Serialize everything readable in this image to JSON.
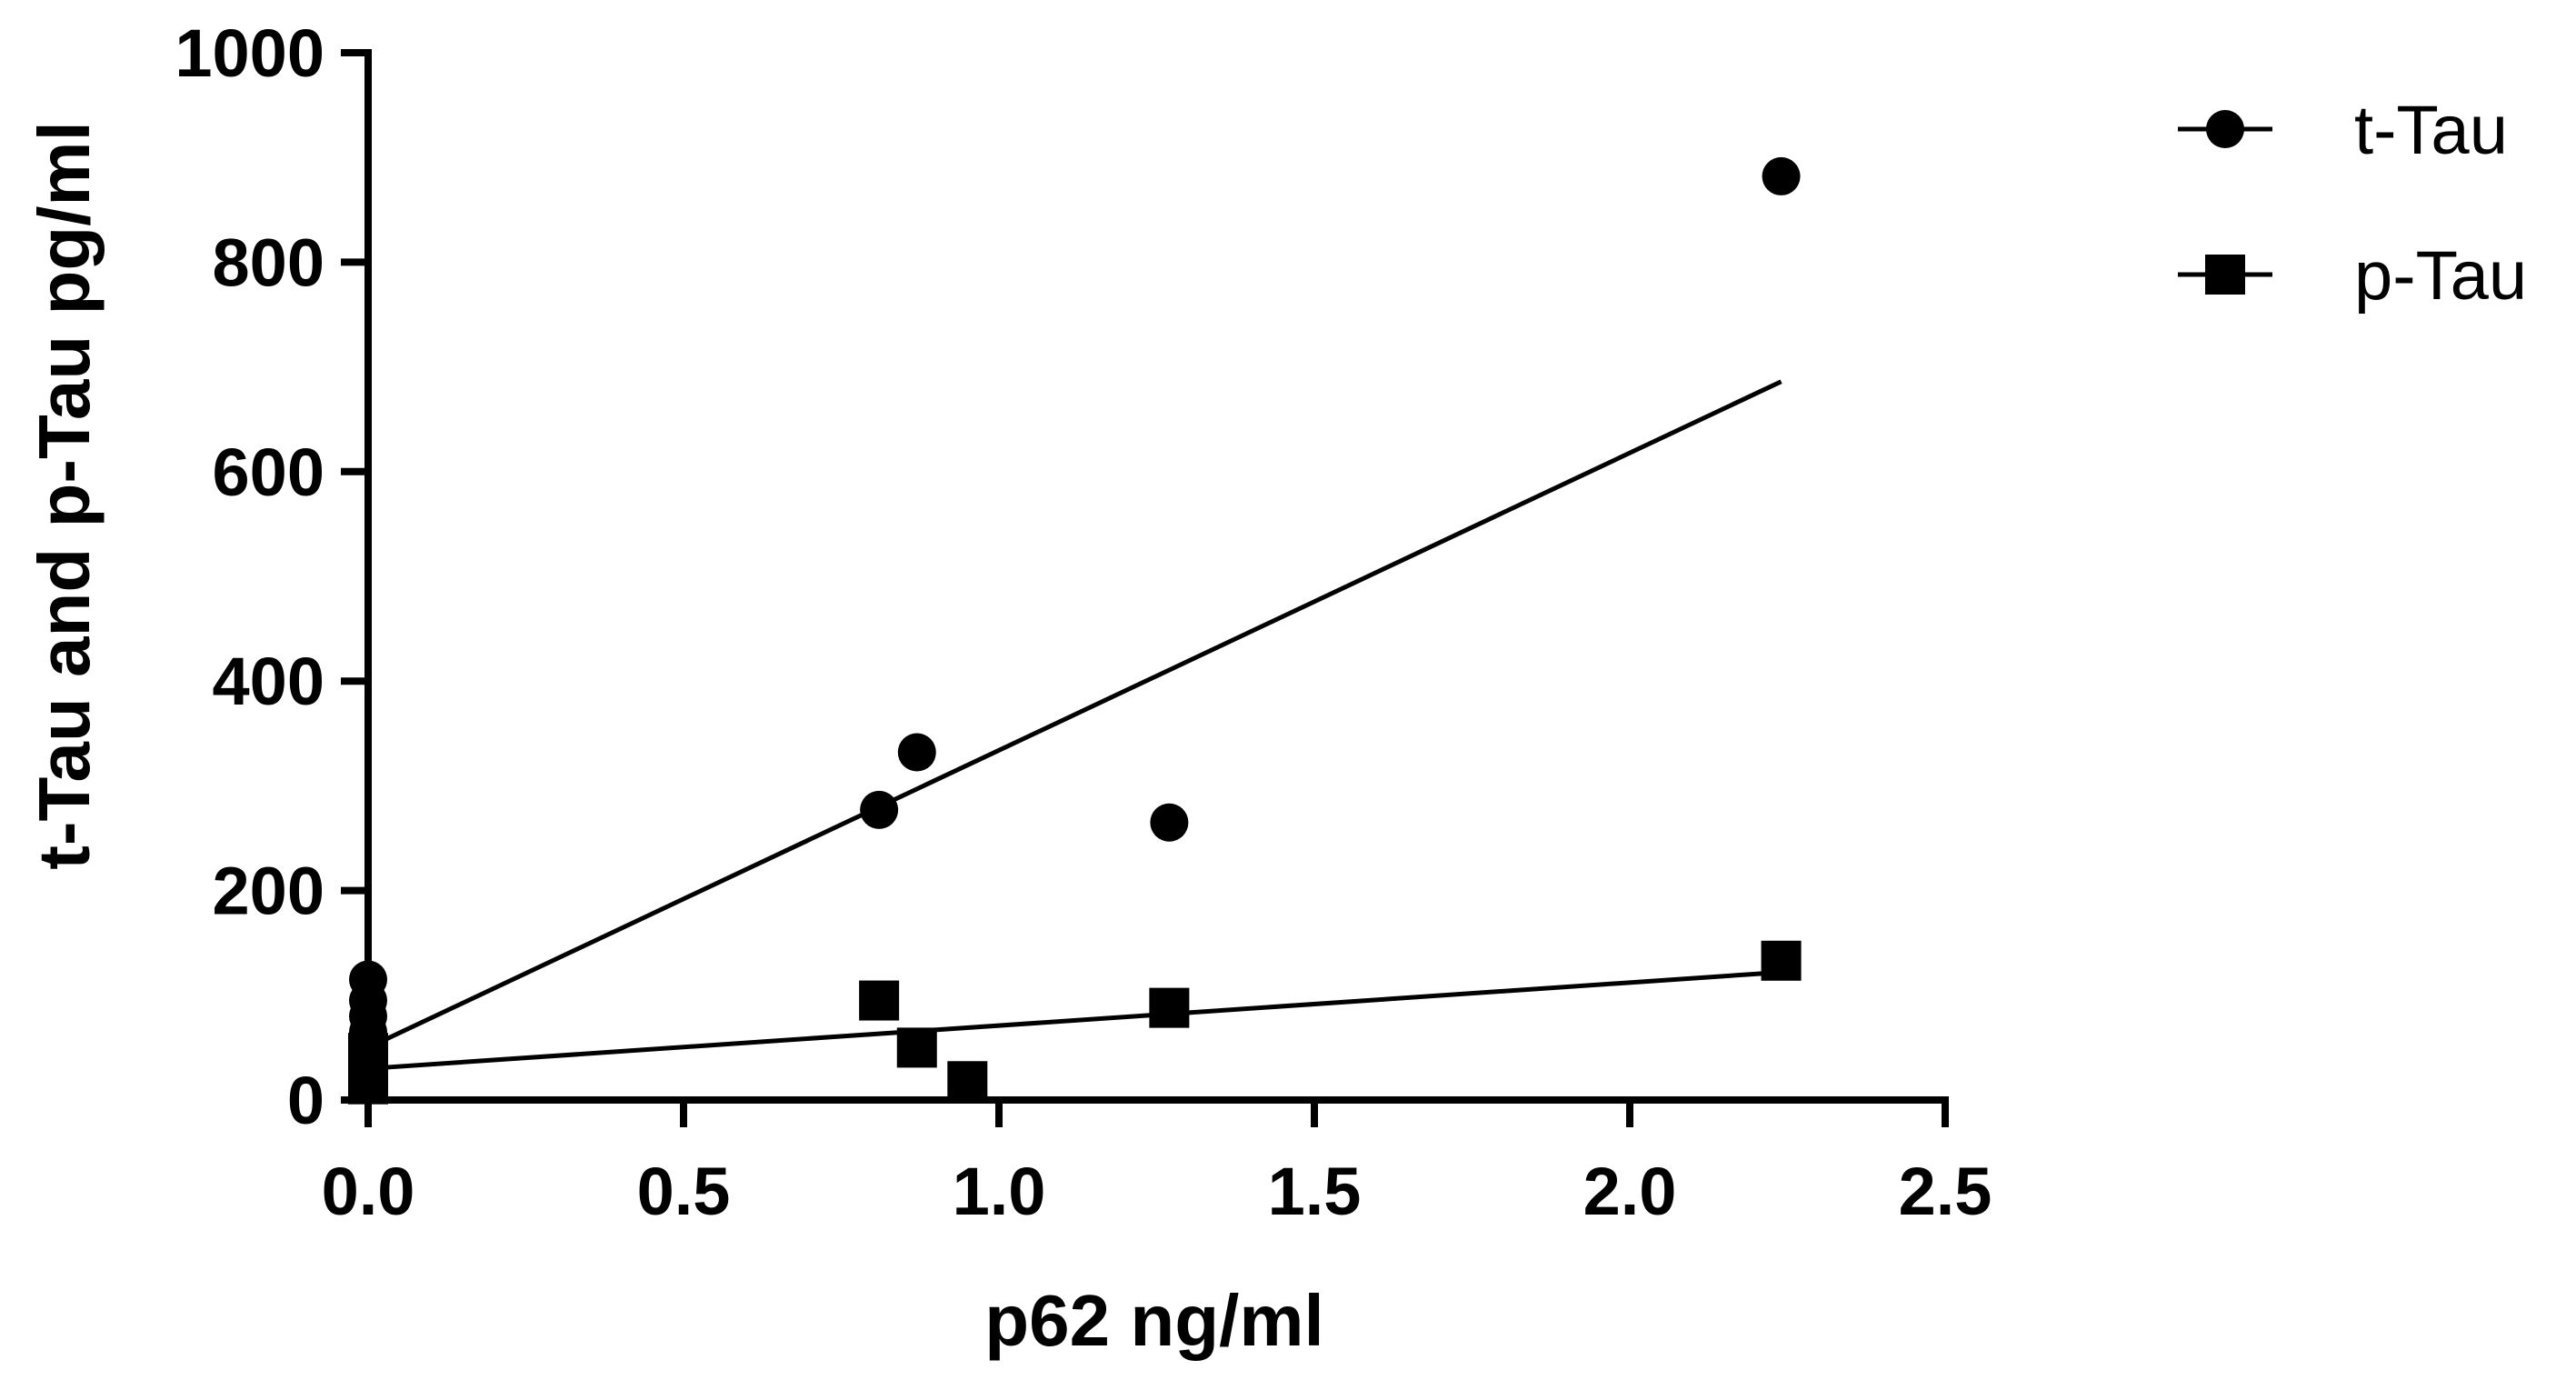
{
  "chart_data": {
    "type": "scatter",
    "xlabel": "p62 ng/ml",
    "ylabel": "t-Tau and p-Tau pg/ml",
    "xlim": [
      0,
      2.5
    ],
    "ylim": [
      0,
      1000
    ],
    "x_ticks": [
      "0.0",
      "0.5",
      "1.0",
      "1.5",
      "2.0",
      "2.5"
    ],
    "y_ticks": [
      "0",
      "200",
      "400",
      "600",
      "800",
      "1000"
    ],
    "legend_position": "top-right",
    "series": [
      {
        "name": "t-Tau",
        "marker": "circle",
        "color": "#000000",
        "points": [
          {
            "x": 0,
            "y": 115
          },
          {
            "x": 0,
            "y": 95
          },
          {
            "x": 0,
            "y": 80
          },
          {
            "x": 0,
            "y": 65
          },
          {
            "x": 0,
            "y": 50
          },
          {
            "x": 0,
            "y": 40
          },
          {
            "x": 0.81,
            "y": 277
          },
          {
            "x": 0.87,
            "y": 332
          },
          {
            "x": 1.27,
            "y": 265
          },
          {
            "x": 2.24,
            "y": 882
          }
        ],
        "fit_line": {
          "x": [
            0,
            2.24
          ],
          "y": [
            50,
            686
          ]
        }
      },
      {
        "name": "p-Tau",
        "marker": "square",
        "color": "#000000",
        "points": [
          {
            "x": 0,
            "y": 45
          },
          {
            "x": 0,
            "y": 35
          },
          {
            "x": 0,
            "y": 25
          },
          {
            "x": 0,
            "y": 15
          },
          {
            "x": 0.81,
            "y": 95
          },
          {
            "x": 0.87,
            "y": 50
          },
          {
            "x": 0.95,
            "y": 18
          },
          {
            "x": 1.27,
            "y": 88
          },
          {
            "x": 2.24,
            "y": 133
          }
        ],
        "fit_line": {
          "x": [
            0,
            2.24
          ],
          "y": [
            30,
            122
          ]
        }
      }
    ]
  }
}
